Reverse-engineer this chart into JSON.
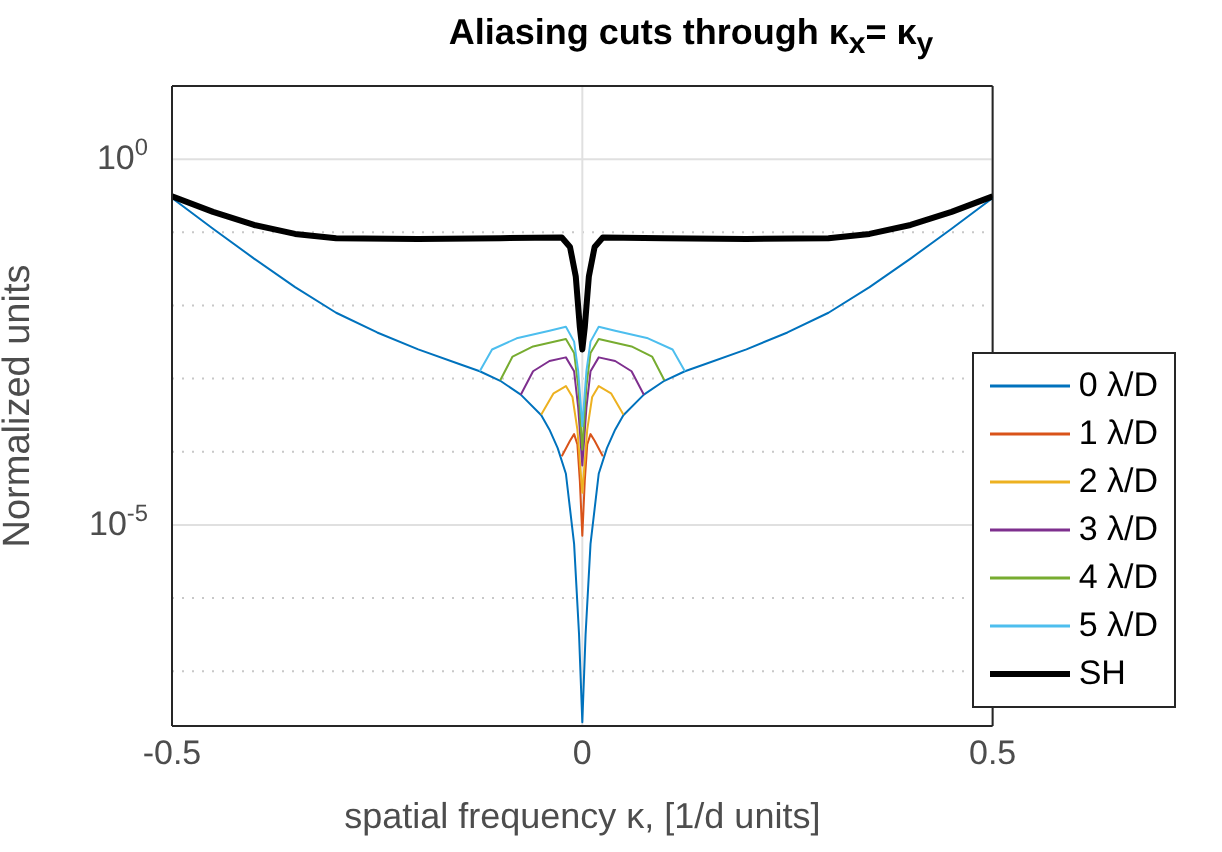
{
  "chart_data": {
    "type": "line",
    "title": "Aliasing cuts through κ$_{x}$= κ$_{y}$",
    "xlabel": "spatial frequency κ, [1/d units]",
    "ylabel": "Normalized units",
    "log": "y",
    "xlim": [
      -0.5,
      0.5
    ],
    "xticks": [
      -0.5,
      0,
      0.5
    ],
    "ylim": [
      1.78e-08,
      10
    ],
    "yticks": [
      {
        "value": 1e-07,
        "label": null
      },
      {
        "value": 1e-06,
        "label": null
      },
      {
        "value": 1e-05,
        "label": "10$^{-5}$"
      },
      {
        "value": 0.0001,
        "label": null
      },
      {
        "value": 0.001,
        "label": null
      },
      {
        "value": 0.01,
        "label": null
      },
      {
        "value": 0.1,
        "label": null
      },
      {
        "value": 1,
        "label": "10$^{0}$"
      }
    ],
    "grid": true,
    "legend": "bottom right",
    "marker": "none",
    "line_style": "solid",
    "series": [
      {
        "name": "0 λ/D",
        "color": "#0072bd",
        "x": [
          -0.5,
          -0.45,
          -0.4,
          -0.35,
          -0.3,
          -0.25,
          -0.2,
          -0.15,
          -0.125,
          -0.1,
          -0.075,
          -0.05,
          -0.04,
          -0.03,
          -0.02,
          -0.01,
          -0.004,
          0,
          0.004,
          0.01,
          0.02,
          0.03,
          0.04,
          0.05,
          0.075,
          0.1,
          0.125,
          0.15,
          0.2,
          0.25,
          0.3,
          0.35,
          0.4,
          0.45,
          0.5
        ],
        "values": [
          0.295,
          0.112,
          0.0437,
          0.0178,
          0.00794,
          0.00427,
          0.00251,
          0.00158,
          0.00126,
          0.000933,
          0.000603,
          0.000316,
          0.0002,
          0.000112,
          5e-05,
          5.5e-06,
          3.2e-07,
          2e-08,
          3.2e-07,
          5.5e-06,
          5e-05,
          0.000112,
          0.0002,
          0.000316,
          0.000603,
          0.000933,
          0.00126,
          0.00158,
          0.00251,
          0.00427,
          0.00794,
          0.0178,
          0.0437,
          0.112,
          0.295
        ]
      },
      {
        "name": "1 λ/D",
        "color": "#d95319",
        "x": [
          -0.025,
          -0.015,
          -0.01,
          -0.006,
          -0.003,
          0,
          0.003,
          0.006,
          0.01,
          0.015,
          0.025
        ],
        "values": [
          8.7e-05,
          0.000141,
          0.000174,
          0.000126,
          4e-05,
          7.1e-06,
          4e-05,
          0.000126,
          0.000174,
          0.000141,
          8.7e-05
        ]
      },
      {
        "name": "2 λ/D",
        "color": "#edb120",
        "x": [
          -0.05,
          -0.035,
          -0.02,
          -0.012,
          -0.006,
          0,
          0.006,
          0.012,
          0.02,
          0.035,
          0.05
        ],
        "values": [
          0.000324,
          0.00063,
          0.00079,
          0.00056,
          0.0002,
          2.75e-05,
          0.0002,
          0.00056,
          0.00079,
          0.00063,
          0.000324
        ]
      },
      {
        "name": "3 λ/D",
        "color": "#7e2f8e",
        "x": [
          -0.075,
          -0.06,
          -0.04,
          -0.02,
          -0.01,
          -0.005,
          0,
          0.005,
          0.01,
          0.02,
          0.04,
          0.06,
          0.075
        ],
        "values": [
          0.0006,
          0.00126,
          0.00174,
          0.00195,
          0.00126,
          0.0004,
          6.5e-05,
          0.0004,
          0.00126,
          0.00195,
          0.00174,
          0.00126,
          0.0006
        ]
      },
      {
        "name": "4 λ/D",
        "color": "#77ac30",
        "x": [
          -0.1,
          -0.085,
          -0.06,
          -0.02,
          -0.01,
          -0.005,
          0,
          0.005,
          0.01,
          0.02,
          0.06,
          0.085,
          0.1
        ],
        "values": [
          0.00095,
          0.002,
          0.00275,
          0.00347,
          0.00224,
          0.00079,
          0.000107,
          0.00079,
          0.00224,
          0.00347,
          0.00275,
          0.002,
          0.00095
        ]
      },
      {
        "name": "5 λ/D",
        "color": "#4dbeee",
        "x": [
          -0.125,
          -0.11,
          -0.08,
          -0.04,
          -0.02,
          -0.01,
          -0.005,
          0,
          0.005,
          0.01,
          0.02,
          0.04,
          0.08,
          0.11,
          0.125
        ],
        "values": [
          0.00126,
          0.0025,
          0.00355,
          0.0045,
          0.0051,
          0.0032,
          0.00126,
          0.000224,
          0.00126,
          0.0032,
          0.0051,
          0.0045,
          0.00355,
          0.0025,
          0.00126
        ]
      },
      {
        "name": "SH",
        "color": "#000000",
        "x": [
          -0.5,
          -0.45,
          -0.4,
          -0.35,
          -0.3,
          -0.2,
          -0.1,
          -0.025,
          -0.015,
          -0.008,
          -0.003,
          0,
          0.003,
          0.008,
          0.015,
          0.025,
          0.1,
          0.2,
          0.3,
          0.35,
          0.4,
          0.45,
          0.5
        ],
        "values": [
          0.31,
          0.19,
          0.126,
          0.095,
          0.083,
          0.081,
          0.083,
          0.085,
          0.063,
          0.025,
          0.005,
          0.0025,
          0.005,
          0.025,
          0.063,
          0.085,
          0.083,
          0.081,
          0.083,
          0.095,
          0.126,
          0.19,
          0.31
        ]
      }
    ]
  }
}
